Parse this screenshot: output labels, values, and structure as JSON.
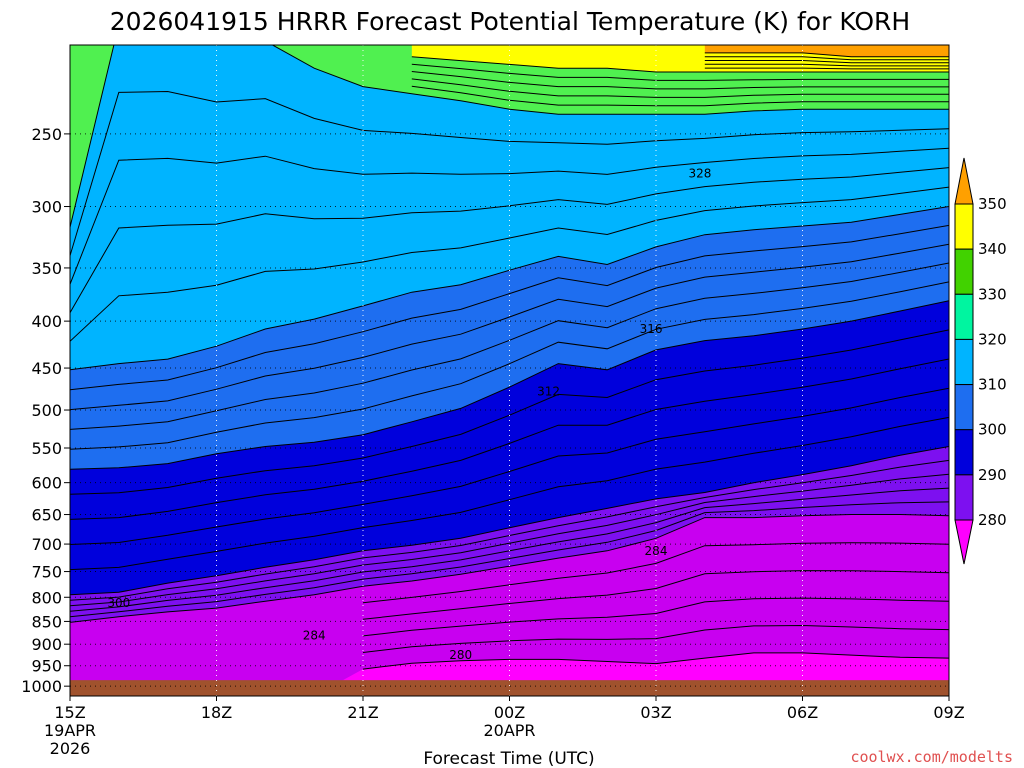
{
  "chart_data": {
    "type": "contour",
    "title": "2026041915 HRRR Forecast Potential Temperature (K) for KORH",
    "xlabel": "Forecast Time (UTC)",
    "ylabel": "",
    "watermark": "coolwx.com/modelts",
    "x_ticks": [
      {
        "hour": 0,
        "label": "15Z",
        "sub": [
          "19APR",
          "2026"
        ]
      },
      {
        "hour": 3,
        "label": "18Z",
        "sub": []
      },
      {
        "hour": 6,
        "label": "21Z",
        "sub": []
      },
      {
        "hour": 9,
        "label": "00Z",
        "sub": [
          "20APR"
        ]
      },
      {
        "hour": 12,
        "label": "03Z",
        "sub": []
      },
      {
        "hour": 15,
        "label": "06Z",
        "sub": []
      },
      {
        "hour": 18,
        "label": "09Z",
        "sub": []
      }
    ],
    "xlim": [
      0,
      18
    ],
    "y_ticks": [
      250,
      300,
      350,
      400,
      450,
      500,
      550,
      600,
      650,
      700,
      750,
      800,
      850,
      900,
      950,
      1000
    ],
    "ylim_hpa": [
      200,
      1025
    ],
    "surface_pressure_hpa": 985,
    "colorbar": {
      "levels": [
        280,
        290,
        300,
        310,
        320,
        330,
        340,
        350
      ],
      "colors": [
        "#ff00ff",
        "#c800f0",
        "#7d10f0",
        "#0000dc",
        "#1e6ef0",
        "#00b4ff",
        "#00f5a0",
        "#50f050",
        "#41d200",
        "#ffff00",
        "#ffa000"
      ]
    },
    "contour_interval_k": 2,
    "contour_labels": [
      {
        "text": "328",
        "hour": 12.9,
        "hpa": 276
      },
      {
        "text": "316",
        "hour": 11.9,
        "hpa": 408
      },
      {
        "text": "312",
        "hour": 9.8,
        "hpa": 477
      },
      {
        "text": "284",
        "hour": 12.0,
        "hpa": 712
      },
      {
        "text": "300",
        "hour": 1.0,
        "hpa": 812
      },
      {
        "text": "284",
        "hour": 5.0,
        "hpa": 881
      },
      {
        "text": "280",
        "hour": 8.0,
        "hpa": 925
      }
    ],
    "sounding_hours": [
      0,
      1,
      2,
      3,
      4,
      5,
      6,
      7,
      8,
      9,
      10,
      11,
      12,
      13,
      14,
      15,
      16,
      17,
      18
    ],
    "level_280_hpa": [
      null,
      null,
      null,
      null,
      null,
      null,
      958,
      944,
      938,
      935,
      935,
      940,
      945,
      932,
      920,
      920,
      925,
      930,
      932
    ],
    "level_290_hpa": [
      852,
      840,
      830,
      822,
      808,
      795,
      778,
      768,
      755,
      740,
      725,
      712,
      690,
      655,
      655,
      652,
      650,
      650,
      652
    ],
    "level_300_hpa": [
      795,
      790,
      772,
      758,
      742,
      728,
      712,
      702,
      690,
      672,
      655,
      640,
      625,
      615,
      600,
      588,
      575,
      560,
      548
    ],
    "level_310_hpa": [
      580,
      578,
      572,
      558,
      548,
      542,
      532,
      515,
      498,
      472,
      445,
      452,
      430,
      420,
      415,
      408,
      400,
      390,
      380
    ],
    "level_320_hpa": [
      452,
      445,
      440,
      426,
      408,
      398,
      385,
      372,
      365,
      352,
      340,
      347,
      332,
      322,
      318,
      315,
      312,
      306,
      300
    ],
    "level_330_hpa": [
      316,
      190,
      190,
      198,
      198,
      212,
      222,
      226,
      230,
      235,
      238,
      238,
      238,
      238,
      236,
      235,
      235,
      235,
      235
    ],
    "level_340_hpa": [
      null,
      null,
      null,
      null,
      null,
      null,
      null,
      206,
      208,
      210,
      212,
      212,
      214,
      214,
      214,
      214,
      214,
      214,
      214
    ],
    "level_350_hpa": [
      null,
      null,
      null,
      null,
      null,
      null,
      null,
      null,
      null,
      null,
      null,
      null,
      null,
      204,
      204,
      204,
      206,
      206,
      206
    ]
  }
}
